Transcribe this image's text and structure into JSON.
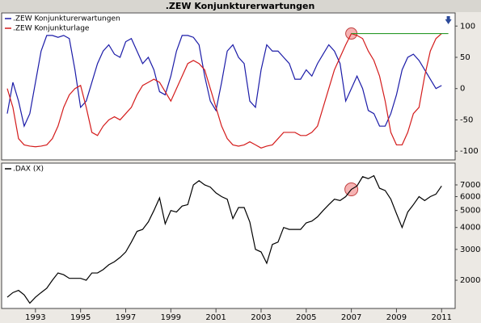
{
  "title": ".ZEW Konjunkturerwartungen",
  "chart_data": [
    {
      "type": "line",
      "x": [
        1991.75,
        1992,
        1992.25,
        1992.5,
        1992.75,
        1993,
        1993.25,
        1993.5,
        1993.75,
        1994,
        1994.25,
        1994.5,
        1994.75,
        1995,
        1995.25,
        1995.5,
        1995.75,
        1996,
        1996.25,
        1996.5,
        1996.75,
        1997,
        1997.25,
        1997.5,
        1997.75,
        1998,
        1998.25,
        1998.5,
        1998.75,
        1999,
        1999.25,
        1999.5,
        1999.75,
        2000,
        2000.25,
        2000.5,
        2000.75,
        2001,
        2001.25,
        2001.5,
        2001.75,
        2002,
        2002.25,
        2002.5,
        2002.75,
        2003,
        2003.25,
        2003.5,
        2003.75,
        2004,
        2004.25,
        2004.5,
        2004.75,
        2005,
        2005.25,
        2005.5,
        2005.75,
        2006,
        2006.25,
        2006.5,
        2006.75,
        2007,
        2007.25,
        2007.5,
        2007.75,
        2008,
        2008.25,
        2008.5,
        2008.75,
        2009,
        2009.25,
        2009.5,
        2009.75,
        2010,
        2010.25,
        2010.5,
        2010.75,
        2011
      ],
      "series": [
        {
          "name": ".ZEW Konjunkturerwartungen",
          "color": "#1c1ca8",
          "values": [
            -40,
            10,
            -20,
            -60,
            -40,
            10,
            60,
            85,
            85,
            82,
            85,
            80,
            30,
            -30,
            -20,
            10,
            40,
            60,
            70,
            55,
            50,
            75,
            80,
            60,
            40,
            50,
            30,
            -5,
            -10,
            20,
            60,
            85,
            85,
            82,
            70,
            20,
            -20,
            -35,
            10,
            60,
            70,
            50,
            40,
            -20,
            -30,
            30,
            70,
            60,
            60,
            50,
            40,
            15,
            15,
            30,
            20,
            40,
            55,
            70,
            60,
            40,
            -20,
            0,
            20,
            0,
            -35,
            -40,
            -60,
            -60,
            -40,
            -10,
            30,
            50,
            55,
            45,
            30,
            15,
            0,
            5
          ]
        },
        {
          "name": ".ZEW Konjunkturlage",
          "color": "#d41c1c",
          "values": [
            0,
            -30,
            -80,
            -90,
            -92,
            -93,
            -92,
            -90,
            -80,
            -60,
            -30,
            -10,
            0,
            5,
            -30,
            -70,
            -75,
            -60,
            -50,
            -45,
            -50,
            -40,
            -30,
            -10,
            5,
            10,
            15,
            10,
            -5,
            -20,
            0,
            20,
            40,
            45,
            40,
            30,
            0,
            -30,
            -60,
            -80,
            -90,
            -92,
            -90,
            -85,
            -90,
            -95,
            -92,
            -90,
            -80,
            -70,
            -70,
            -70,
            -75,
            -75,
            -70,
            -60,
            -30,
            0,
            30,
            50,
            70,
            88,
            85,
            80,
            60,
            45,
            20,
            -20,
            -70,
            -90,
            -90,
            -70,
            -40,
            -30,
            20,
            60,
            80,
            88
          ]
        }
      ],
      "xlim": [
        1991.5,
        2011.6
      ],
      "ylim": [
        -114,
        121
      ],
      "yticks": [
        100,
        50,
        0,
        -50,
        -100
      ],
      "legend": "upper left",
      "hline": {
        "y": 88,
        "x": [
          2007,
          2011.3
        ],
        "color": "#2a9a2a"
      }
    },
    {
      "type": "line",
      "x": [
        1991.75,
        1992,
        1992.25,
        1992.5,
        1992.75,
        1993,
        1993.25,
        1993.5,
        1993.75,
        1994,
        1994.25,
        1994.5,
        1994.75,
        1995,
        1995.25,
        1995.5,
        1995.75,
        1996,
        1996.25,
        1996.5,
        1996.75,
        1997,
        1997.25,
        1997.5,
        1997.75,
        1998,
        1998.25,
        1998.5,
        1998.75,
        1999,
        1999.25,
        1999.5,
        1999.75,
        2000,
        2000.25,
        2000.5,
        2000.75,
        2001,
        2001.25,
        2001.5,
        2001.75,
        2002,
        2002.25,
        2002.5,
        2002.75,
        2003,
        2003.25,
        2003.5,
        2003.75,
        2004,
        2004.25,
        2004.5,
        2004.75,
        2005,
        2005.25,
        2005.5,
        2005.75,
        2006,
        2006.25,
        2006.5,
        2006.75,
        2007,
        2007.25,
        2007.5,
        2007.75,
        2008,
        2008.25,
        2008.5,
        2008.75,
        2009,
        2009.25,
        2009.5,
        2009.75,
        2010,
        2010.25,
        2010.5,
        2010.75,
        2011
      ],
      "series": [
        {
          "name": ".DAX (X)",
          "color": "#000000",
          "values": [
            1600,
            1700,
            1750,
            1650,
            1480,
            1600,
            1700,
            1800,
            2000,
            2200,
            2150,
            2050,
            2050,
            2050,
            2000,
            2200,
            2200,
            2300,
            2450,
            2550,
            2700,
            2900,
            3300,
            3800,
            3900,
            4300,
            5000,
            5900,
            4200,
            5000,
            4900,
            5300,
            5400,
            7000,
            7400,
            7000,
            6800,
            6300,
            6000,
            5800,
            4500,
            5200,
            5200,
            4300,
            3000,
            2900,
            2500,
            3200,
            3300,
            4000,
            3900,
            3900,
            3900,
            4250,
            4350,
            4600,
            5000,
            5400,
            5800,
            5700,
            6000,
            6600,
            6900,
            7800,
            7600,
            7900,
            6700,
            6500,
            5800,
            4800,
            4000,
            4900,
            5400,
            6000,
            5700,
            6000,
            6200,
            6900
          ]
        }
      ],
      "xlim": [
        1991.5,
        2011.6
      ],
      "xticks": [
        1993,
        1995,
        1997,
        1999,
        2001,
        2003,
        2005,
        2007,
        2009,
        2011
      ],
      "ylim": [
        1380,
        9320
      ],
      "log_y": true,
      "yticks": [
        2000,
        3000,
        4000,
        5000,
        6000,
        7000
      ],
      "legend": "upper left"
    }
  ]
}
